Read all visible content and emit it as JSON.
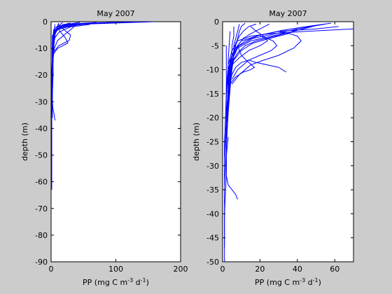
{
  "chart_data": [
    {
      "type": "line",
      "title": "May 2007",
      "xlabel": "PP (mg C m^-3 d^-1)",
      "ylabel": "depth (m)",
      "xlim": [
        0,
        200
      ],
      "ylim": [
        -90,
        0
      ],
      "xticks": [
        0,
        100,
        200
      ],
      "yticks": [
        -90,
        -80,
        -70,
        -60,
        -50,
        -40,
        -30,
        -20,
        -10,
        0
      ],
      "grid": false,
      "series_color": "#0000ff",
      "series": [
        {
          "x": [
            150,
            60,
            20,
            8,
            4,
            3,
            2,
            2,
            1,
            1,
            1,
            1
          ],
          "y": [
            0,
            -0.5,
            -1,
            -2,
            -3,
            -5,
            -10,
            -15,
            -20,
            -30,
            -45,
            -60
          ]
        },
        {
          "x": [
            160,
            40,
            15,
            6,
            3,
            2,
            2,
            1,
            1,
            1
          ],
          "y": [
            0,
            -1,
            -2,
            -3,
            -5,
            -8,
            -12,
            -20,
            -30,
            -40
          ]
        },
        {
          "x": [
            100,
            30,
            10,
            5,
            3,
            2,
            2,
            1,
            1
          ],
          "y": [
            -0.2,
            -1,
            -2,
            -4,
            -6,
            -10,
            -15,
            -25,
            -35
          ]
        },
        {
          "x": [
            80,
            50,
            20,
            8,
            4,
            3,
            2,
            2
          ],
          "y": [
            -0.5,
            -1,
            -2,
            -3,
            -5,
            -8,
            -12,
            -20
          ]
        },
        {
          "x": [
            60,
            45,
            25,
            10,
            5,
            3,
            2
          ],
          "y": [
            -1,
            -1.5,
            -2,
            -3,
            -5,
            -8,
            -12
          ]
        },
        {
          "x": [
            40,
            30,
            20,
            12,
            6,
            3,
            2,
            1
          ],
          "y": [
            -1,
            -2,
            -3,
            -4,
            -6,
            -9,
            -14,
            -20
          ]
        },
        {
          "x": [
            25,
            35,
            30,
            20,
            10,
            5,
            3,
            2
          ],
          "y": [
            -0.5,
            -2,
            -3,
            -5,
            -7,
            -10,
            -14,
            -18
          ]
        },
        {
          "x": [
            10,
            20,
            30,
            28,
            20,
            12,
            5
          ],
          "y": [
            -1,
            -3,
            -5,
            -7,
            -8,
            -9,
            -11
          ]
        },
        {
          "x": [
            8,
            15,
            22,
            26,
            18,
            10,
            4
          ],
          "y": [
            -2,
            -4,
            -6,
            -8,
            -9,
            -10,
            -12
          ]
        },
        {
          "x": [
            30,
            22,
            15,
            10,
            6,
            4,
            3,
            2,
            2
          ],
          "y": [
            -0.5,
            -1,
            -2,
            -3,
            -4,
            -6,
            -8,
            -12,
            -18
          ]
        },
        {
          "x": [
            20,
            15,
            10,
            7,
            5,
            4,
            3,
            2,
            2,
            1
          ],
          "y": [
            -1,
            -2,
            -3,
            -4,
            -6,
            -8,
            -10,
            -15,
            -22,
            -30
          ]
        },
        {
          "x": [
            12,
            10,
            8,
            6,
            5,
            4,
            3,
            3,
            2,
            2
          ],
          "y": [
            -0.5,
            -1.5,
            -3,
            -5,
            -7,
            -10,
            -14,
            -20,
            -28,
            -36
          ]
        },
        {
          "x": [
            6,
            5,
            4,
            3,
            3,
            2,
            2,
            1,
            1
          ],
          "y": [
            -1,
            -3,
            -5,
            -8,
            -12,
            -18,
            -26,
            -34,
            -44
          ]
        },
        {
          "x": [
            3,
            3,
            2,
            2,
            2,
            3,
            5,
            6
          ],
          "y": [
            -10,
            -15,
            -20,
            -25,
            -30,
            -33,
            -35,
            -37
          ]
        },
        {
          "x": [
            2,
            2,
            2,
            1,
            1,
            1,
            1,
            1
          ],
          "y": [
            -5,
            -15,
            -25,
            -35,
            -45,
            -55,
            -60,
            -63
          ]
        },
        {
          "x": [
            18,
            14,
            10,
            8,
            6,
            5,
            4,
            3
          ],
          "y": [
            -0.3,
            -1,
            -2,
            -3,
            -5,
            -7,
            -10,
            -15
          ]
        },
        {
          "x": [
            45,
            30,
            18,
            10,
            6,
            4,
            3,
            2
          ],
          "y": [
            -0.2,
            -0.8,
            -1.5,
            -2.5,
            -4,
            -6,
            -9,
            -13
          ]
        },
        {
          "x": [
            70,
            40,
            20,
            10,
            5,
            3,
            2
          ],
          "y": [
            -0.3,
            -0.8,
            -1.5,
            -2.5,
            -4,
            -7,
            -11
          ]
        }
      ]
    },
    {
      "type": "line",
      "title": "May 2007",
      "xlabel": "PP (mg C m^-3 d^-1)",
      "ylabel": "depth (m)",
      "xlim": [
        0,
        70
      ],
      "ylim": [
        -50,
        0
      ],
      "xticks": [
        0,
        20,
        40,
        60
      ],
      "yticks": [
        -50,
        -45,
        -40,
        -35,
        -30,
        -25,
        -20,
        -15,
        -10,
        -5,
        0
      ],
      "grid": false,
      "series_color": "#0000ff",
      "series": [
        {
          "x": [
            70,
            45,
            25,
            15,
            8,
            5,
            3,
            2,
            2,
            1
          ],
          "y": [
            -1.5,
            -2,
            -2.5,
            -3,
            -4,
            -6,
            -9,
            -14,
            -20,
            -30
          ]
        },
        {
          "x": [
            62,
            50,
            30,
            18,
            10,
            6,
            4,
            3,
            2
          ],
          "y": [
            -1,
            -1.5,
            -2,
            -3,
            -4,
            -6,
            -9,
            -14,
            -20
          ]
        },
        {
          "x": [
            55,
            40,
            28,
            16,
            9,
            5,
            3,
            2
          ],
          "y": [
            -0.5,
            -1.5,
            -2.5,
            -3.5,
            -5,
            -7,
            -10,
            -15
          ]
        },
        {
          "x": [
            48,
            38,
            26,
            15,
            8,
            5,
            3,
            2
          ],
          "y": [
            -1,
            -2,
            -3,
            -4,
            -5.5,
            -8,
            -11,
            -16
          ]
        },
        {
          "x": [
            40,
            35,
            25,
            16,
            10,
            6,
            4,
            3,
            2
          ],
          "y": [
            -1.5,
            -2.5,
            -3.5,
            -4.5,
            -6,
            -8,
            -11,
            -15,
            -20
          ]
        },
        {
          "x": [
            34,
            30,
            24,
            18,
            14,
            10,
            7,
            5,
            3
          ],
          "y": [
            -10.5,
            -9.5,
            -9,
            -8.5,
            -8,
            -8.5,
            -9.5,
            -11,
            -14
          ]
        },
        {
          "x": [
            8,
            10,
            14,
            17,
            15,
            11,
            7,
            4
          ],
          "y": [
            -5,
            -7,
            -8.5,
            -9.5,
            -10,
            -10.5,
            -11.5,
            -13
          ]
        },
        {
          "x": [
            20,
            24,
            27,
            29,
            26,
            20,
            14,
            8,
            5
          ],
          "y": [
            -3,
            -3.5,
            -4,
            -5,
            -6,
            -7,
            -8,
            -10,
            -12
          ]
        },
        {
          "x": [
            30,
            36,
            40,
            42,
            38,
            30,
            22,
            15,
            9,
            5
          ],
          "y": [
            -2,
            -2.5,
            -3,
            -4,
            -5.5,
            -7,
            -8,
            -9,
            -11,
            -13
          ]
        },
        {
          "x": [
            25,
            20,
            15,
            11,
            8,
            6,
            5,
            4,
            3,
            2
          ],
          "y": [
            -0.5,
            -1.5,
            -2.5,
            -3.5,
            -5,
            -7,
            -9,
            -12,
            -16,
            -22
          ]
        },
        {
          "x": [
            18,
            14,
            11,
            9,
            7,
            6,
            5,
            4,
            3,
            2
          ],
          "y": [
            -0.5,
            -1,
            -2,
            -3,
            -4.5,
            -6.5,
            -9,
            -13,
            -18,
            -25
          ]
        },
        {
          "x": [
            12,
            10,
            9,
            8,
            7,
            6,
            5,
            4,
            3,
            2
          ],
          "y": [
            -0.3,
            -1,
            -2,
            -3.5,
            -5,
            -7,
            -10,
            -14,
            -19,
            -26
          ]
        },
        {
          "x": [
            9,
            8,
            7,
            6,
            6,
            5,
            4,
            3,
            2,
            1
          ],
          "y": [
            -0.5,
            -2,
            -3.5,
            -5,
            -7,
            -9,
            -12,
            -16,
            -21,
            -28
          ]
        },
        {
          "x": [
            6,
            6,
            5,
            5,
            4,
            4,
            3,
            2,
            2,
            1
          ],
          "y": [
            -1,
            -3,
            -5,
            -7,
            -9,
            -12,
            -16,
            -21,
            -27,
            -34
          ]
        },
        {
          "x": [
            3,
            2,
            2,
            3,
            5,
            7,
            8
          ],
          "y": [
            -24,
            -28,
            -32,
            -34,
            -35,
            -36,
            -37
          ]
        },
        {
          "x": [
            2,
            2,
            1,
            1,
            1,
            1,
            1,
            1
          ],
          "y": [
            -5,
            -15,
            -25,
            -35,
            -40,
            -45,
            -48,
            -50
          ]
        },
        {
          "x": [
            4,
            3,
            3,
            2,
            2,
            2,
            1,
            1
          ],
          "y": [
            -2,
            -8,
            -14,
            -20,
            -26,
            -32,
            -40,
            -47
          ]
        },
        {
          "x": [
            58,
            45,
            32,
            20,
            12,
            7,
            4,
            3
          ],
          "y": [
            -0.3,
            -1,
            -1.8,
            -2.8,
            -4,
            -5.5,
            -8,
            -12
          ]
        },
        {
          "x": [
            15,
            18,
            22,
            24,
            20,
            14,
            9,
            5,
            3
          ],
          "y": [
            -1,
            -2,
            -3,
            -4,
            -5,
            -6,
            -7.5,
            -9,
            -12
          ]
        },
        {
          "x": [
            50,
            42,
            34,
            26,
            18,
            12,
            8,
            5,
            3
          ],
          "y": [
            -0.8,
            -1.6,
            -2.4,
            -3.2,
            -4,
            -5,
            -6.5,
            -8.5,
            -12
          ]
        }
      ]
    }
  ]
}
